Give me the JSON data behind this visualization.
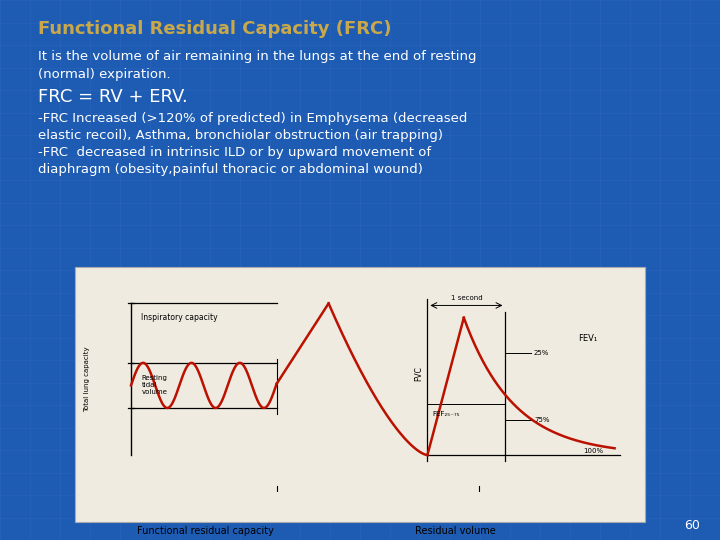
{
  "bg_color": "#1e5cb3",
  "title": "Functional Residual Capacity (FRC)",
  "title_color": "#c8a84b",
  "title_fontsize": 13,
  "line1": "It is the volume of air remaining in the lungs at the end of resting",
  "line2": "(normal) expiration.",
  "line3": "FRC = RV + ERV.",
  "line4": "-FRC Increased (>120% of predicted) in Emphysema (decreased",
  "line5": "elastic recoil), Asthma, bronchiolar obstruction (air trapping)",
  "line6": "-FRC  decreased in intrinsic ILD or by upward movement of",
  "line7": "diaphragm (obesity,painful thoracic or abdominal wound)",
  "page_num": "60",
  "body_fontsize": 9.5,
  "line3_fontsize": 13
}
